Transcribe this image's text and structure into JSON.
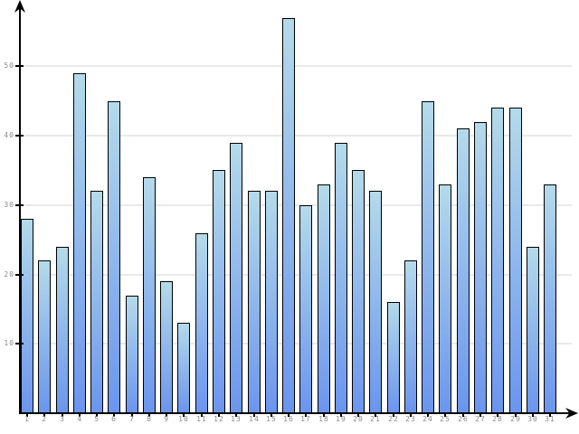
{
  "chart_data": {
    "type": "bar",
    "categories": [
      "1",
      "2",
      "3",
      "4",
      "5",
      "6",
      "7",
      "8",
      "9",
      "10",
      "11",
      "12",
      "13",
      "14",
      "15",
      "16",
      "17",
      "18",
      "19",
      "20",
      "21",
      "22",
      "23",
      "24",
      "25",
      "26",
      "27",
      "28",
      "29",
      "30",
      "31"
    ],
    "values": [
      28,
      22,
      24,
      49,
      32,
      45,
      17,
      34,
      19,
      13,
      26,
      35,
      39,
      32,
      32,
      57,
      30,
      33,
      39,
      35,
      32,
      16,
      22,
      45,
      33,
      41,
      42,
      44,
      44,
      24,
      33
    ],
    "yticks": [
      10,
      20,
      30,
      40,
      50
    ],
    "ylim": [
      0,
      58
    ],
    "grid": true,
    "legend": false,
    "colors": {
      "bar_gradient_top": "#b4daea",
      "bar_gradient_bottom": "#6b95ee",
      "bar_border": "#000000",
      "gridline": "#e9e9e9",
      "axis": "#000000",
      "tick_label": "#8a8a8a"
    }
  }
}
